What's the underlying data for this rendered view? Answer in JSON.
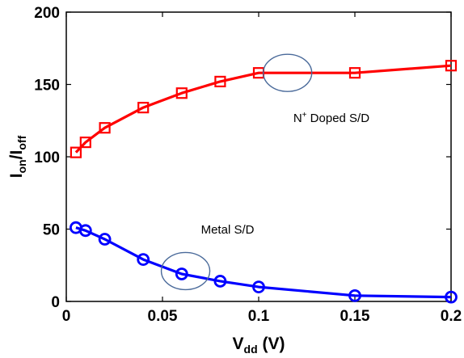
{
  "chart_data": {
    "type": "line",
    "xlabel_main": "V",
    "xlabel_sub": "dd",
    "xlabel_unit": " (V)",
    "ylabel_num_main": "I",
    "ylabel_num_sub": "on",
    "ylabel_sep": "/",
    "ylabel_den_main": "I",
    "ylabel_den_sub": "off",
    "xlim": [
      0,
      0.2
    ],
    "ylim": [
      0,
      200
    ],
    "xticks": [
      0,
      0.05,
      0.1,
      0.15,
      0.2
    ],
    "xtick_labels": [
      "0",
      "0.05",
      "0.1",
      "0.15",
      "0.2"
    ],
    "yticks": [
      0,
      50,
      100,
      150,
      200
    ],
    "ytick_labels": [
      "0",
      "50",
      "100",
      "150",
      "200"
    ],
    "grid": false,
    "series": [
      {
        "key": "n_doped",
        "color": "#ff0000",
        "marker": "square",
        "x": [
          0.005,
          0.01,
          0.02,
          0.04,
          0.06,
          0.08,
          0.1,
          0.15,
          0.2
        ],
        "y": [
          103,
          110,
          120,
          134,
          144,
          152,
          158,
          158,
          163
        ]
      },
      {
        "key": "metal",
        "color": "#0000ff",
        "marker": "circle",
        "x": [
          0.005,
          0.01,
          0.02,
          0.04,
          0.06,
          0.08,
          0.1,
          0.15,
          0.2
        ],
        "y": [
          51,
          49,
          43,
          29,
          19,
          14,
          10,
          4,
          3
        ]
      }
    ],
    "annotations": [
      {
        "key": "n_doped",
        "text_main": "N",
        "text_sup": "+",
        "text_rest": " Doped S/D",
        "ellipse_color": "#4a6a9a",
        "ellipse_x": 0.115,
        "ellipse_y": 158,
        "text_x": 0.118,
        "text_y": 124
      },
      {
        "key": "metal",
        "text": "Metal S/D",
        "ellipse_color": "#4a6a9a",
        "ellipse_x": 0.062,
        "ellipse_y": 21,
        "text_x": 0.07,
        "text_y": 47
      }
    ]
  }
}
